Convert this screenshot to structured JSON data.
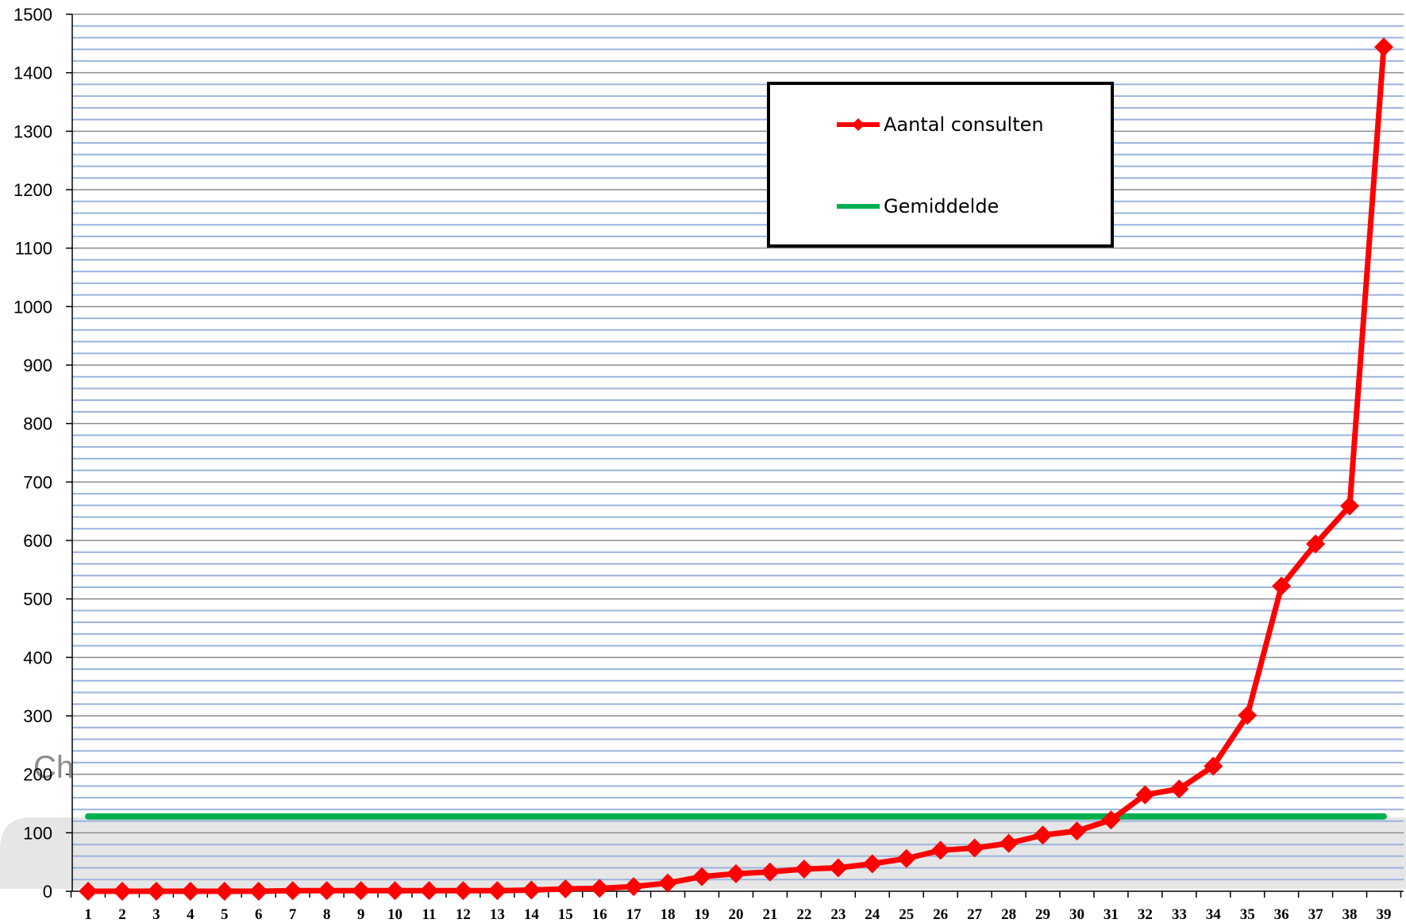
{
  "chart_data": {
    "type": "line",
    "categories": [
      "1",
      "2",
      "3",
      "4",
      "5",
      "6",
      "7",
      "8",
      "9",
      "10",
      "11",
      "12",
      "13",
      "14",
      "15",
      "16",
      "17",
      "18",
      "19",
      "20",
      "21",
      "22",
      "23",
      "24",
      "25",
      "26",
      "27",
      "28",
      "29",
      "30",
      "31",
      "32",
      "33",
      "34",
      "35",
      "36",
      "37",
      "38",
      "39"
    ],
    "series": [
      {
        "name": "Aantal consulten",
        "color": "#ff0000",
        "marker": "diamond",
        "values": [
          0,
          0,
          0,
          0,
          0,
          0,
          1,
          1,
          1,
          1,
          1,
          1,
          1,
          2,
          4,
          5,
          8,
          14,
          25,
          30,
          33,
          38,
          40,
          47,
          56,
          70,
          74,
          82,
          96,
          103,
          122,
          165,
          175,
          214,
          301,
          522,
          594,
          659,
          1444
        ]
      },
      {
        "name": "Gemiddelde",
        "color": "#00b050",
        "marker": "none",
        "values": [
          128,
          128,
          128,
          128,
          128,
          128,
          128,
          128,
          128,
          128,
          128,
          128,
          128,
          128,
          128,
          128,
          128,
          128,
          128,
          128,
          128,
          128,
          128,
          128,
          128,
          128,
          128,
          128,
          128,
          128,
          128,
          128,
          128,
          128,
          128,
          128,
          128,
          128,
          128
        ]
      }
    ],
    "yticks": [
      0,
      100,
      200,
      300,
      400,
      500,
      600,
      700,
      800,
      900,
      1000,
      1100,
      1200,
      1300,
      1400,
      1500
    ],
    "ylim": [
      0,
      1500
    ],
    "grid": "major and minor horizontal",
    "grid_colors": {
      "major": "#8c8c8c",
      "minor": "#9bb3dd"
    },
    "legend_placement": "top-center",
    "title": "",
    "xlabel": "",
    "ylabel": ""
  },
  "overlay": {
    "partial_text": "Ch"
  }
}
